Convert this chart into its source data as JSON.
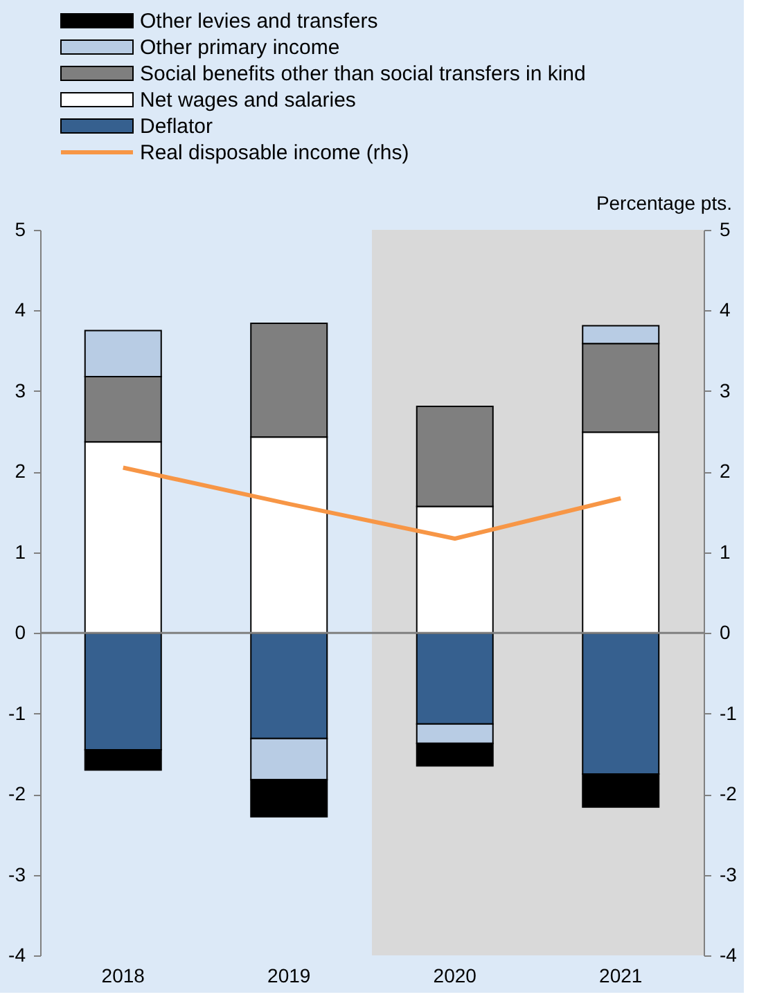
{
  "chart_data": {
    "type": "bar",
    "stacked": true,
    "categories": [
      "2018",
      "2019",
      "2020",
      "2021"
    ],
    "y2label": "Percentage pts.",
    "series": [
      {
        "name": "Deflator",
        "color": "#36608f",
        "values": [
          -1.45,
          -1.31,
          -1.13,
          -1.75
        ]
      },
      {
        "name": "Net wages and salaries",
        "color": "#ffffff",
        "values": [
          2.37,
          2.43,
          1.57,
          2.49
        ]
      },
      {
        "name": "Social benefits other than social transfers in kind",
        "color": "#7f7f7f",
        "values": [
          0.81,
          1.41,
          1.24,
          1.1
        ]
      },
      {
        "name": "Other primary income",
        "color": "#b8cce4",
        "values": [
          0.57,
          -0.51,
          -0.24,
          0.22
        ]
      },
      {
        "name": "Other levies and transfers",
        "color": "#000000",
        "values": [
          -0.25,
          -0.46,
          -0.28,
          -0.41
        ]
      },
      {
        "name": "Real disposable income (rhs)",
        "type": "line",
        "axis": "y2",
        "color": "#f79646",
        "values": [
          2.05,
          1.6,
          1.17,
          1.67
        ]
      }
    ],
    "ylim": [
      -4,
      5
    ],
    "yticks": [
      -4,
      -3,
      -2,
      -1,
      0,
      1,
      2,
      3,
      4,
      5
    ],
    "y2lim": [
      -4,
      5
    ],
    "y2ticks": [
      -4,
      -3,
      -2,
      -1,
      0,
      1,
      2,
      3,
      4,
      5
    ],
    "ref_lines": [
      {
        "axis": "y",
        "value": 0,
        "color": "#808080"
      }
    ],
    "bands": [
      {
        "axis": "x",
        "from": "2020",
        "to": "2021",
        "color": "#d9d9d9"
      }
    ],
    "legend": "top left",
    "grid": false,
    "marker": "none",
    "line_style": "solid"
  }
}
